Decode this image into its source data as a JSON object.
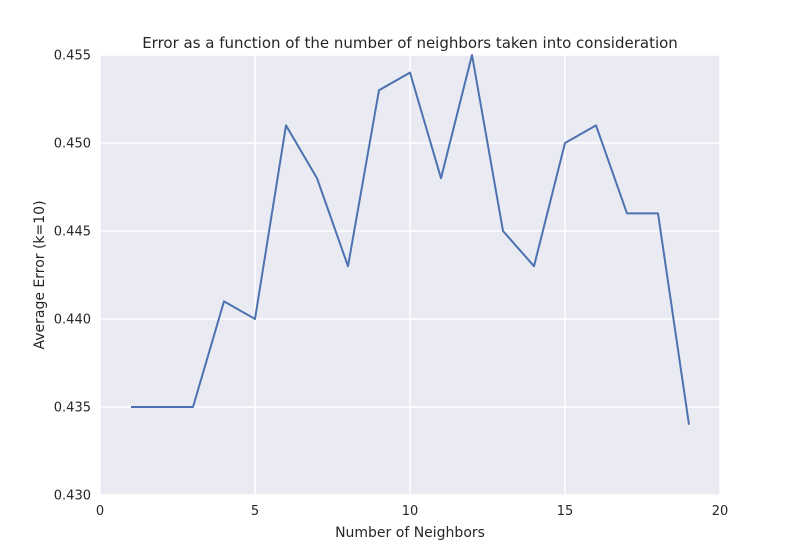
{
  "chart_data": {
    "type": "line",
    "title": "Error as a function of the number of neighbors taken into consideration",
    "xlabel": "Number of Neighbors",
    "ylabel": "Average Error (k=10)",
    "xlim": [
      0,
      20
    ],
    "ylim": [
      0.43,
      0.455
    ],
    "xticks": [
      0,
      5,
      10,
      15,
      20
    ],
    "xtick_labels": [
      "0",
      "5",
      "10",
      "15",
      "20"
    ],
    "yticks": [
      0.43,
      0.435,
      0.44,
      0.445,
      0.45,
      0.455
    ],
    "ytick_labels": [
      "0.430",
      "0.435",
      "0.440",
      "0.445",
      "0.450",
      "0.455"
    ],
    "grid": true,
    "background_color": "#eaeaf2",
    "grid_color": "#ffffff",
    "series": [
      {
        "color": "#4c72b0",
        "x": [
          1,
          2,
          3,
          4,
          5,
          6,
          7,
          8,
          9,
          10,
          11,
          12,
          13,
          14,
          15,
          16,
          17,
          18,
          19
        ],
        "y": [
          0.435,
          0.435,
          0.435,
          0.441,
          0.44,
          0.451,
          0.448,
          0.443,
          0.453,
          0.454,
          0.448,
          0.455,
          0.445,
          0.443,
          0.45,
          0.451,
          0.446,
          0.446,
          0.434
        ]
      }
    ]
  }
}
